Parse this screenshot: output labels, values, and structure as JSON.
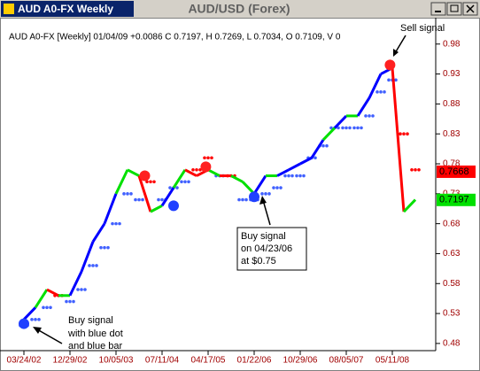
{
  "window_title": "AUD A0-FX Weekly",
  "chart_data": {
    "type": "line",
    "title": "AUD/USD (Forex)",
    "info": "AUD A0-FX [Weekly] 01/04/09 +0.0086 C 0.7197, H 0.7269, L 0.7034, O 0.7109, V 0",
    "categories": [
      "03/24/02",
      null,
      null,
      null,
      "12/29/02",
      null,
      null,
      null,
      "10/05/03",
      null,
      null,
      null,
      "07/11/04",
      null,
      null,
      null,
      "04/17/05",
      null,
      null,
      null,
      "01/22/06",
      null,
      null,
      null,
      "10/29/06",
      null,
      null,
      null,
      "08/05/07",
      null,
      null,
      null,
      "05/11/08",
      null,
      null
    ],
    "values": [
      0.52,
      0.54,
      0.57,
      0.56,
      0.56,
      0.6,
      0.65,
      0.68,
      0.73,
      0.77,
      0.76,
      0.7,
      0.71,
      0.74,
      0.77,
      0.76,
      0.77,
      0.76,
      0.76,
      0.75,
      0.73,
      0.76,
      0.76,
      0.77,
      0.78,
      0.79,
      0.82,
      0.84,
      0.86,
      0.86,
      0.89,
      0.93,
      0.94,
      0.7,
      0.72
    ],
    "colors": [
      "#00e000",
      "#0000ff",
      "#00e000",
      "#ff0000",
      "#00e000",
      "#0000ff",
      "#0000ff",
      "#0000ff",
      "#0000ff",
      "#00e000",
      "#00e000",
      "#ff0000",
      "#00e000",
      "#0000ff",
      "#00e000",
      "#ff0000",
      "#ff0000",
      "#00e000",
      "#ff0000",
      "#00e000",
      "#00e000",
      "#0000ff",
      "#00e000",
      "#0000ff",
      "#0000ff",
      "#0000ff",
      "#0000ff",
      "#00e000",
      "#0000ff",
      "#00e000",
      "#0000ff",
      "#0000ff",
      "#0000ff",
      "#ff0000",
      "#00e000"
    ],
    "stop_values": [
      0.51,
      0.52,
      0.54,
      0.56,
      0.55,
      0.57,
      0.61,
      0.64,
      0.68,
      0.73,
      0.72,
      0.75,
      0.72,
      0.74,
      0.75,
      0.77,
      0.79,
      0.76,
      0.76,
      0.72,
      0.72,
      0.73,
      0.74,
      0.76,
      0.76,
      0.79,
      0.81,
      0.84,
      0.84,
      0.84,
      0.86,
      0.9,
      0.92,
      0.83,
      0.77
    ],
    "stop_colors": [
      "#4060ff",
      "#4060ff",
      "#4060ff",
      "#ff0000",
      "#4060ff",
      "#4060ff",
      "#4060ff",
      "#4060ff",
      "#4060ff",
      "#4060ff",
      "#4060ff",
      "#ff0000",
      "#4060ff",
      "#4060ff",
      "#4060ff",
      "#ff0000",
      "#ff0000",
      "#4060ff",
      "#ff0000",
      "#4060ff",
      "#4060ff",
      "#4060ff",
      "#4060ff",
      "#4060ff",
      "#4060ff",
      "#4060ff",
      "#4060ff",
      "#4060ff",
      "#4060ff",
      "#4060ff",
      "#4060ff",
      "#4060ff",
      "#4060ff",
      "#ff0000",
      "#ff0000"
    ],
    "signals": {
      "x_index": [
        0,
        13,
        20,
        10.5,
        15.8,
        31.8
      ],
      "values": [
        0.513,
        0.71,
        0.725,
        0.76,
        0.775,
        0.945
      ],
      "colors": [
        "#2040ff",
        "#2040ff",
        "#2040ff",
        "#ff2020",
        "#ff2020",
        "#ff2020"
      ]
    },
    "last_labels": [
      {
        "value": 0.7668,
        "color": "#ff0000"
      },
      {
        "value": 0.7197,
        "color": "#00e000"
      }
    ],
    "ylim": [
      0.468,
      1.024
    ],
    "yticks": [
      0.48,
      0.53,
      0.58,
      0.63,
      0.68,
      0.73,
      0.78,
      0.83,
      0.88,
      0.93,
      0.98
    ],
    "annotations": [
      {
        "lines": [
          "Sell signal"
        ]
      },
      {
        "lines": [
          "Buy signal",
          "on 04/23/06",
          "at $0.75"
        ]
      },
      {
        "lines": [
          "Buy signal",
          "with blue dot",
          "and blue bar"
        ]
      }
    ]
  }
}
